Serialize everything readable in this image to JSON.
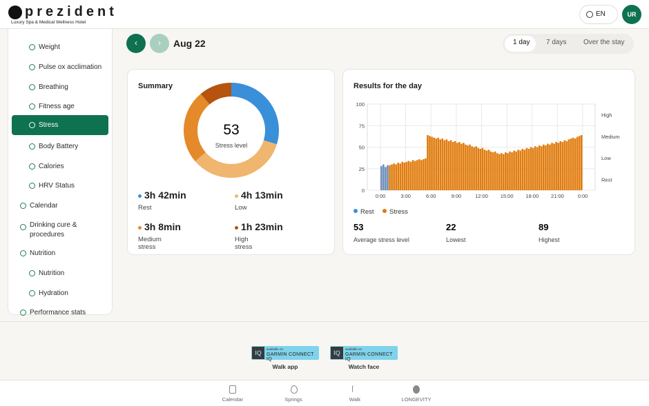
{
  "header": {
    "logo": "prezident",
    "tagline": "Luxury Spa & Medical Wellness Hotel",
    "language": "EN",
    "avatar": "UR"
  },
  "sidebar": {
    "items": [
      "Weight",
      "Pulse ox acclimation",
      "Breathing",
      "Fitness age",
      "Stress",
      "Body Battery",
      "Calories",
      "HRV Status",
      "Calendar",
      "Drinking cure & procedures",
      "Nutrition",
      "Nutrition",
      "Hydration",
      "Performance stats"
    ]
  },
  "date": "Aug 22",
  "tabs": [
    "1 day",
    "7 days",
    "Over the stay"
  ],
  "chart_data": [
    {
      "type": "pie",
      "title": "Summary",
      "center_value": 53,
      "center_label": "Stress level",
      "categories": [
        "Rest",
        "Low",
        "Medium stress",
        "High stress"
      ],
      "values": [
        222,
        253,
        188,
        83
      ],
      "value_labels": [
        "3h 42min",
        "4h 13min",
        "3h 8min",
        "1h 23min"
      ],
      "colors": [
        "#3a8fd9",
        "#f0b56e",
        "#e48a2a",
        "#b5530f"
      ]
    },
    {
      "type": "bar",
      "title": "Results for the day",
      "ylim": [
        0,
        100
      ],
      "yticks": [
        0,
        25,
        50,
        75,
        100
      ],
      "grid": true,
      "xtick_labels": [
        "0:00",
        "3:00",
        "6:00",
        "9:00",
        "12:00",
        "15:00",
        "18:00",
        "21:00",
        "0:00"
      ],
      "zone_labels": [
        {
          "value": 87.5,
          "label": "High"
        },
        {
          "value": 62.5,
          "label": "Medium"
        },
        {
          "value": 37.5,
          "label": "Low"
        },
        {
          "value": 12.5,
          "label": "Rest"
        }
      ],
      "series": [
        {
          "name": "Rest",
          "color": "#3a8fd9",
          "bar_color": "#6f8fb8",
          "values": [
            28,
            30,
            27,
            29,
            null,
            null,
            null,
            null,
            null,
            null,
            null,
            null,
            null,
            null,
            null,
            null,
            null,
            null,
            null,
            null,
            null,
            null,
            null,
            null,
            null,
            null,
            null,
            null,
            null,
            null,
            null,
            null,
            null,
            null,
            null,
            null,
            null,
            null,
            null,
            null,
            null,
            null,
            null,
            null,
            null,
            null,
            null,
            null,
            null,
            null,
            null,
            null,
            null,
            null,
            null,
            null,
            null,
            null,
            null,
            null,
            null,
            null,
            null,
            null,
            null,
            null,
            null,
            null,
            null,
            null,
            null,
            null,
            null,
            null,
            null,
            null,
            null,
            null,
            null,
            null,
            null,
            null,
            null,
            null,
            null,
            null,
            null,
            null,
            null,
            null,
            null,
            null,
            null,
            null,
            null,
            null
          ]
        },
        {
          "name": "Stress",
          "color": "#e07b0c",
          "bar_color": "#e07b0c",
          "values": [
            null,
            null,
            null,
            null,
            29,
            30,
            31,
            30,
            32,
            31,
            33,
            32,
            33,
            34,
            33,
            35,
            34,
            35,
            36,
            35,
            36,
            37,
            64,
            63,
            62,
            61,
            60,
            61,
            59,
            60,
            58,
            59,
            57,
            58,
            56,
            57,
            55,
            56,
            54,
            55,
            53,
            52,
            53,
            51,
            50,
            51,
            49,
            48,
            49,
            47,
            46,
            47,
            45,
            44,
            45,
            43,
            42,
            43,
            42,
            44,
            43,
            45,
            44,
            46,
            45,
            47,
            46,
            48,
            47,
            49,
            48,
            50,
            49,
            51,
            50,
            52,
            51,
            53,
            52,
            54,
            53,
            55,
            54,
            56,
            55,
            57,
            56,
            58,
            57,
            59,
            60,
            61,
            60,
            62,
            63,
            64
          ]
        }
      ],
      "stats": [
        {
          "value": 53,
          "label": "Average stress level"
        },
        {
          "value": 22,
          "label": "Lowest"
        },
        {
          "value": 89,
          "label": "Highest"
        }
      ]
    }
  ],
  "apps": [
    {
      "badge_top": "available on",
      "badge_main": "GARMIN CONNECT IQ",
      "label": "Walk app"
    },
    {
      "badge_top": "available on",
      "badge_main": "GARMIN CONNECT IQ",
      "label": "Watch face"
    }
  ],
  "nav": [
    "Calendar",
    "Springs",
    "Walk",
    "LONGEVITY"
  ]
}
